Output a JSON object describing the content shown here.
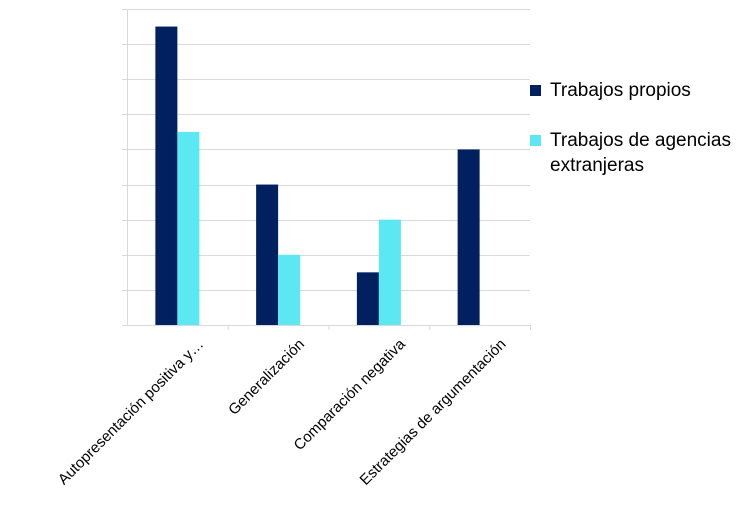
{
  "chart_data": {
    "type": "bar",
    "title": "",
    "xlabel": "",
    "ylabel": "",
    "categories": [
      "Autopresentación positiva y…",
      "Generalización",
      "Comparación negativa",
      "Estrategias de argumentación"
    ],
    "series": [
      {
        "name": "Trabajos propios",
        "color": "#002060",
        "values": [
          8.5,
          4,
          1.5,
          5
        ]
      },
      {
        "name": "Trabajos de agencias extranjeras",
        "color": "#5BE8F2",
        "values": [
          5.5,
          2,
          3,
          0
        ]
      }
    ],
    "ylim": [
      0,
      9
    ],
    "y_ticks": [
      0,
      1,
      2,
      3,
      4,
      5,
      6,
      7,
      8,
      9
    ],
    "y_tick_labels_shown": false,
    "grid": true,
    "legend_position": "right"
  }
}
